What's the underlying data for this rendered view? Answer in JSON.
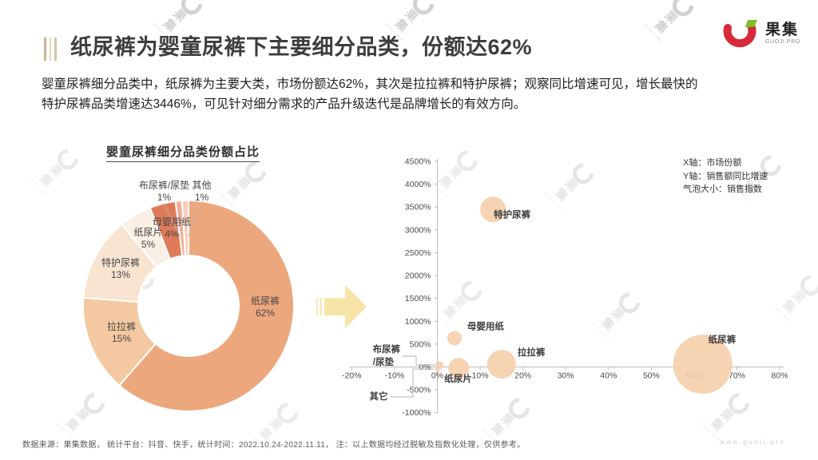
{
  "header": {
    "title": "纸尿裤为婴童尿裤下主要细分品类，份额达62%",
    "logo_text": "果集",
    "logo_sub": "GUOJI.PRO"
  },
  "intro": {
    "line1": "婴童尿裤细分品类中，纸尿裤为主要大类，市场份额达62%，其次是拉拉裤和特护尿裤；观察同比增速可见，增长最快的",
    "line2": "特护尿裤品类增速达3446%，可见针对细分需求的产品升级迭代是品牌增长的有效方向。"
  },
  "bubble_legend": {
    "x_axis": "X轴：市场份额",
    "y_axis": "Y轴：销售额同比增速",
    "size": "气泡大小：销售指数"
  },
  "footer": {
    "note": "数据来源：果集数据， 统计平台：抖音、快手，统计时间：2022.10.24-2022.11.11， 注：以上数据均经过脱敏及指数化处理，仅供参考。",
    "website": "www.guoji.pro"
  },
  "watermark": {
    "text": "果集",
    "sub": "GUOJI.PRO"
  },
  "colors": {
    "accent_orange": "#EDA77D",
    "bubble_fill": "#F5CEAB",
    "arrow_yellow": "#F8E3A8",
    "logo_red": "#D6293A",
    "logo_green": "#7FBE26",
    "axis_gray": "#bdbdbd"
  },
  "chart_data": [
    {
      "type": "pie",
      "donut": true,
      "title": "婴童尿裤细分品类份额占比",
      "categories": [
        "纸尿裤",
        "拉拉裤",
        "特护尿裤",
        "纸尿片",
        "母婴用纸",
        "布尿裤/尿垫",
        "其他"
      ],
      "values": [
        62,
        15,
        13,
        5,
        4,
        1,
        1
      ],
      "pct_labels": [
        "62%",
        "15%",
        "13%",
        "5%",
        "4%",
        "1%",
        "1%"
      ],
      "colors": [
        "#EDA77D",
        "#F4C9A1",
        "#F8E4D1",
        "#FAEFE4",
        "#E07B5A",
        "#EFAE9A",
        "#F6D0BC"
      ],
      "unit": "%"
    },
    {
      "type": "scatter",
      "title": "",
      "xlabel": "市场份额",
      "ylabel": "销售额同比增速",
      "size_label": "销售指数",
      "xlim": [
        -20,
        80
      ],
      "ylim": [
        -1000,
        4500
      ],
      "x_ticks": [
        "-20%",
        "-10%",
        "0%",
        "10%",
        "20%",
        "30%",
        "40%",
        "50%",
        "60%",
        "70%",
        "80%"
      ],
      "y_ticks": [
        "4500%",
        "4000%",
        "3500%",
        "3000%",
        "2500%",
        "2000%",
        "1500%",
        "1000%",
        "500%",
        "0%",
        "-500%",
        "-1000%"
      ],
      "points": [
        {
          "name": "特护尿裤",
          "x": 13,
          "y": 3446,
          "radius_px": 16
        },
        {
          "name": "母婴用纸",
          "x": 4,
          "y": 630,
          "radius_px": 9
        },
        {
          "name": "布尿裤/尿垫",
          "x": 0.5,
          "y": 40,
          "radius_px": 5
        },
        {
          "name": "拉拉裤",
          "x": 15,
          "y": 60,
          "radius_px": 18
        },
        {
          "name": "纸尿片",
          "x": 5,
          "y": -30,
          "radius_px": 13
        },
        {
          "name": "其它",
          "x": 0,
          "y": -60,
          "radius_px": 3
        },
        {
          "name": "纸尿裤",
          "x": 62,
          "y": 60,
          "radius_px": 37
        }
      ]
    }
  ]
}
